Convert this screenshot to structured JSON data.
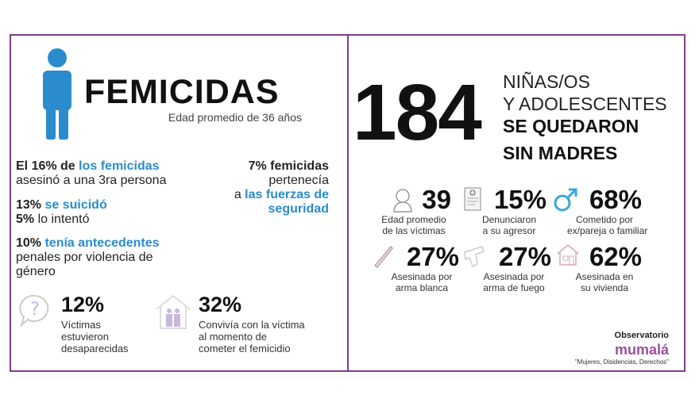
{
  "left": {
    "title": "FEMICIDAS",
    "subtitle": "Edad promedio de 36 años",
    "stat16": {
      "a": "El 16% de ",
      "b": "los femicidas",
      "c": "asesinó a una 3ra persona"
    },
    "stat7": {
      "a": "7% femicidas",
      "b": "pertenecía",
      "c": "a ",
      "d": "las fuerzas de",
      "e": "seguridad"
    },
    "stat13": {
      "a": "13% ",
      "b": "se suicidó",
      "c": "5% ",
      "d": "lo intentó"
    },
    "stat10": {
      "a": "10% ",
      "b": "tenía antecedentes",
      "c": "penales por violencia de",
      "d": "género"
    },
    "stat12": {
      "value": "12%",
      "l1": "Víctimas",
      "l2": "estuvieron",
      "l3": "desaparecidas"
    },
    "stat32": {
      "value": "32%",
      "l1": "Convivía con la víctima",
      "l2": "al momento de",
      "l3": "cometer el femicidio"
    }
  },
  "right": {
    "number": "184",
    "lines": [
      "NIÑAS/OS",
      "Y ADOLESCENTES",
      "SE QUEDARON",
      "SIN MADRES"
    ],
    "stats": [
      {
        "icon": "woman-icon",
        "value": "39",
        "l1": "Edad promedio",
        "l2": "de las víctimas"
      },
      {
        "icon": "document-icon",
        "value": "15%",
        "l1": "Denunciaron",
        "l2": "a su agresor"
      },
      {
        "icon": "male-symbol-icon",
        "value": "68%",
        "l1": "Cometido por",
        "l2": "ex/pareja o familiar"
      },
      {
        "icon": "knife-icon",
        "value": "27%",
        "l1": "Asesinada por",
        "l2": "arma blanca"
      },
      {
        "icon": "gun-icon",
        "value": "27%",
        "l1": "Asesinada por",
        "l2": "arma de fuego"
      },
      {
        "icon": "house-icon",
        "value": "62%",
        "l1": "Asesinada en",
        "l2": "su vivienda"
      }
    ],
    "logo": {
      "label": "Observatorio",
      "brand": "mumalá",
      "tagline": "\"Mujeres, Disidencias, Derechos\""
    }
  },
  "colors": {
    "frame": "#7b3f8a",
    "accent": "#2a8ccc",
    "brand": "#9b4f9e"
  }
}
